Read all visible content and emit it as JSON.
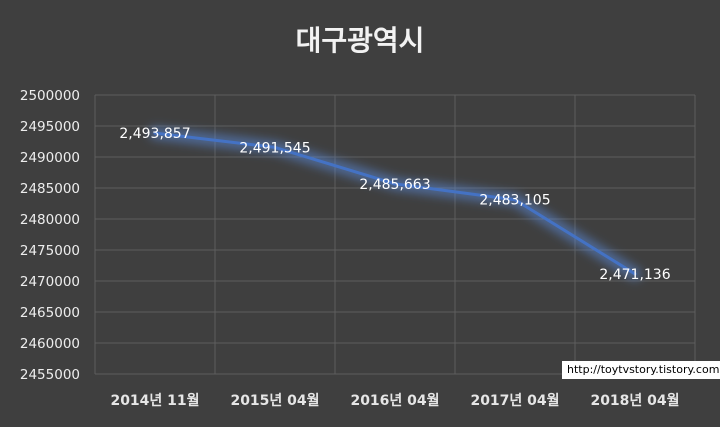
{
  "chart_data": {
    "type": "line",
    "title": "대구광역시",
    "categories": [
      "2014년 11월",
      "2015년 04월",
      "2016년 04월",
      "2017년 04월",
      "2018년 04월"
    ],
    "series": [
      {
        "values": [
          2493857,
          2491545,
          2485663,
          2483105,
          2471136
        ]
      }
    ],
    "data_labels": [
      "2,493,857",
      "2,491,545",
      "2,485,663",
      "2,483,105",
      "2,471,136"
    ],
    "y_ticks": [
      "2455000",
      "2460000",
      "2465000",
      "2470000",
      "2475000",
      "2480000",
      "2485000",
      "2490000",
      "2495000",
      "2500000"
    ],
    "ylim": [
      2455000,
      2500000
    ],
    "grid": true,
    "legend": "none",
    "colors": {
      "line": "#4472c4",
      "glow": "#5b8fe8",
      "background": "#3f3f3f",
      "grid": "#5d5d5d"
    }
  },
  "watermark": "http://toytvstory.tistory.com"
}
